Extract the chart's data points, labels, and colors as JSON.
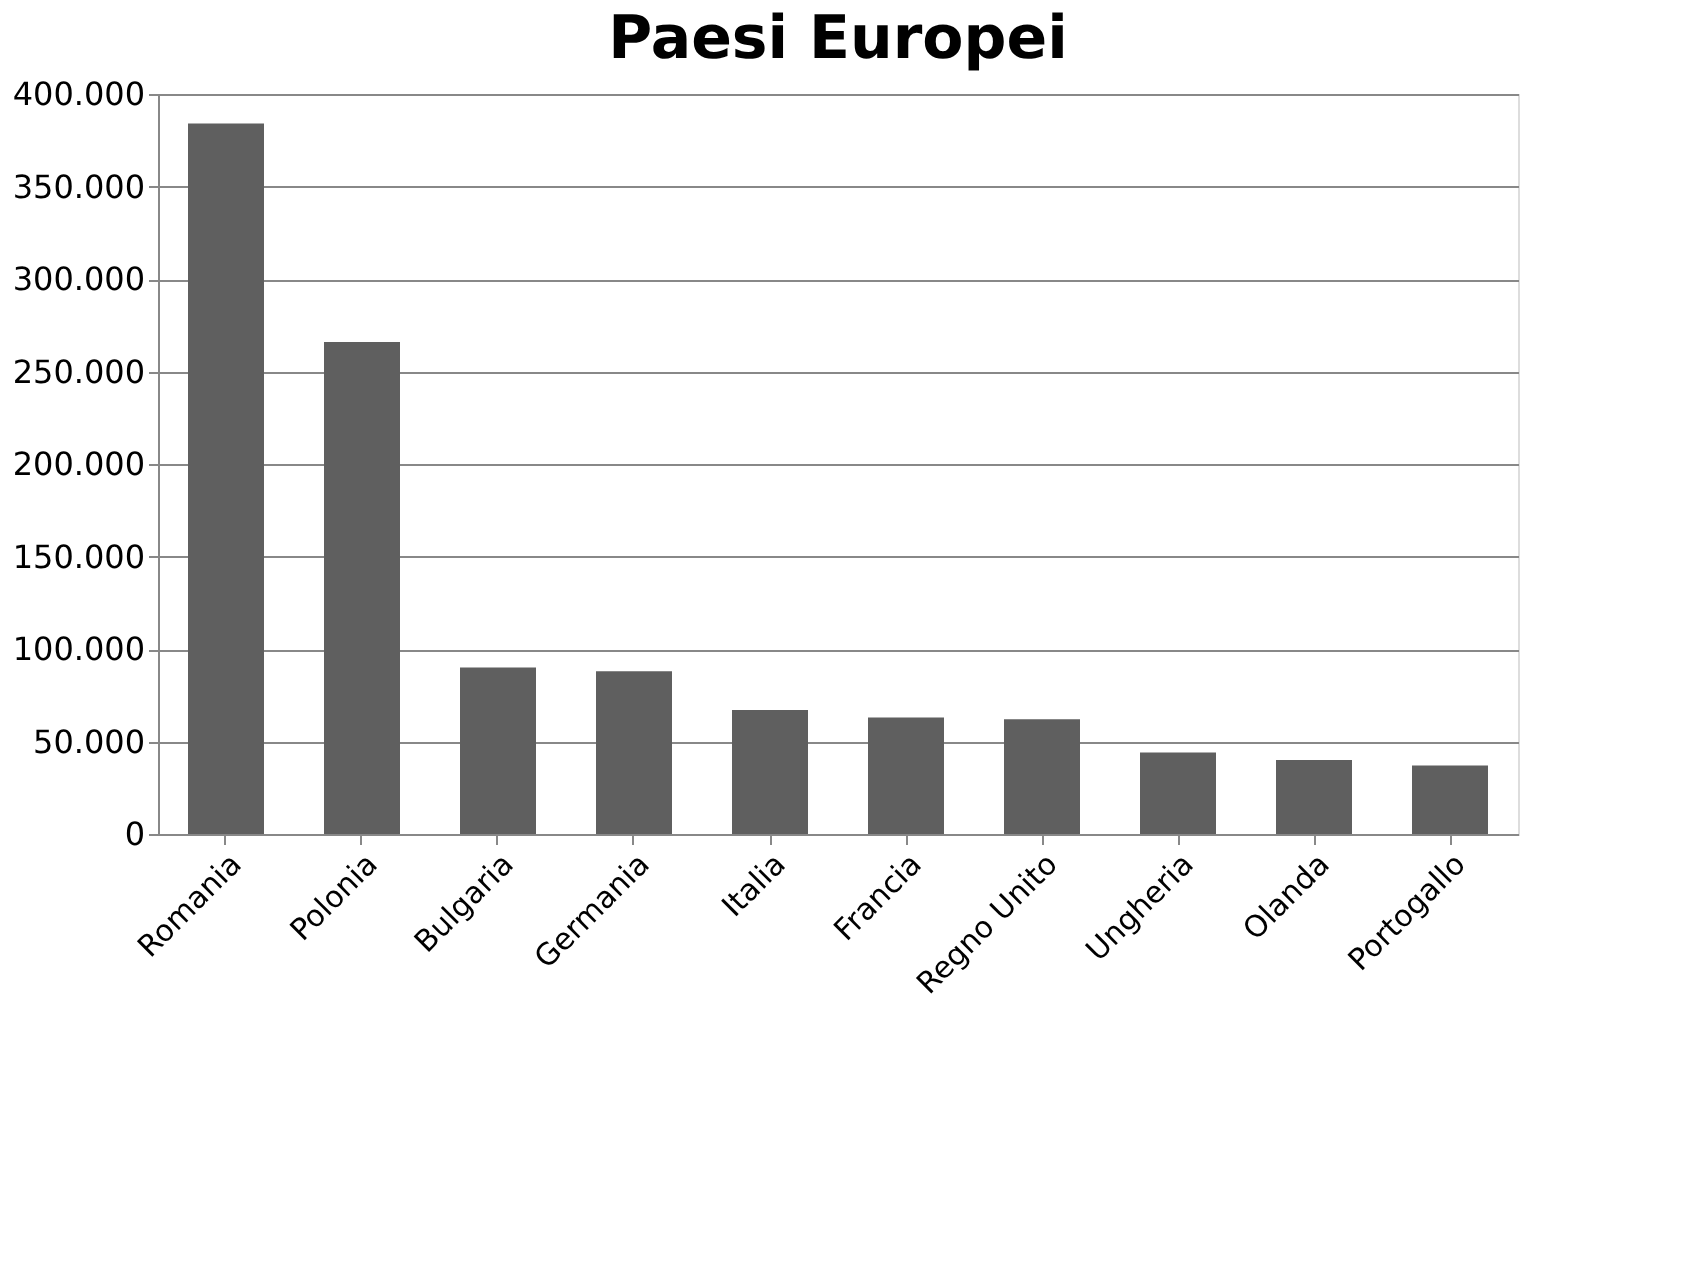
{
  "chart_data": {
    "type": "bar",
    "title": "Paesi Europei",
    "categories": [
      "Romania",
      "Polonia",
      "Bulgaria",
      "Germania",
      "Italia",
      "Francia",
      "Regno Unito",
      "Ungheria",
      "Olanda",
      "Portogallo"
    ],
    "values": [
      384000,
      266000,
      90000,
      88000,
      67000,
      63000,
      62000,
      44000,
      40000,
      37000
    ],
    "color": "#5f5f5f",
    "ylim": [
      0,
      400000
    ],
    "yticks": [
      0,
      {
        "value": 50000,
        "label": "50.000"
      },
      {
        "value": 100000,
        "label": "100.000"
      },
      {
        "value": 150000,
        "label": "150.000"
      },
      {
        "value": 200000,
        "label": "200.000"
      },
      {
        "value": 250000,
        "label": "250.000"
      },
      {
        "value": 300000,
        "label": "300.000"
      },
      {
        "value": 350000,
        "label": "350.000"
      },
      {
        "value": 400000,
        "label": "400.000"
      }
    ],
    "grid": "y"
  }
}
